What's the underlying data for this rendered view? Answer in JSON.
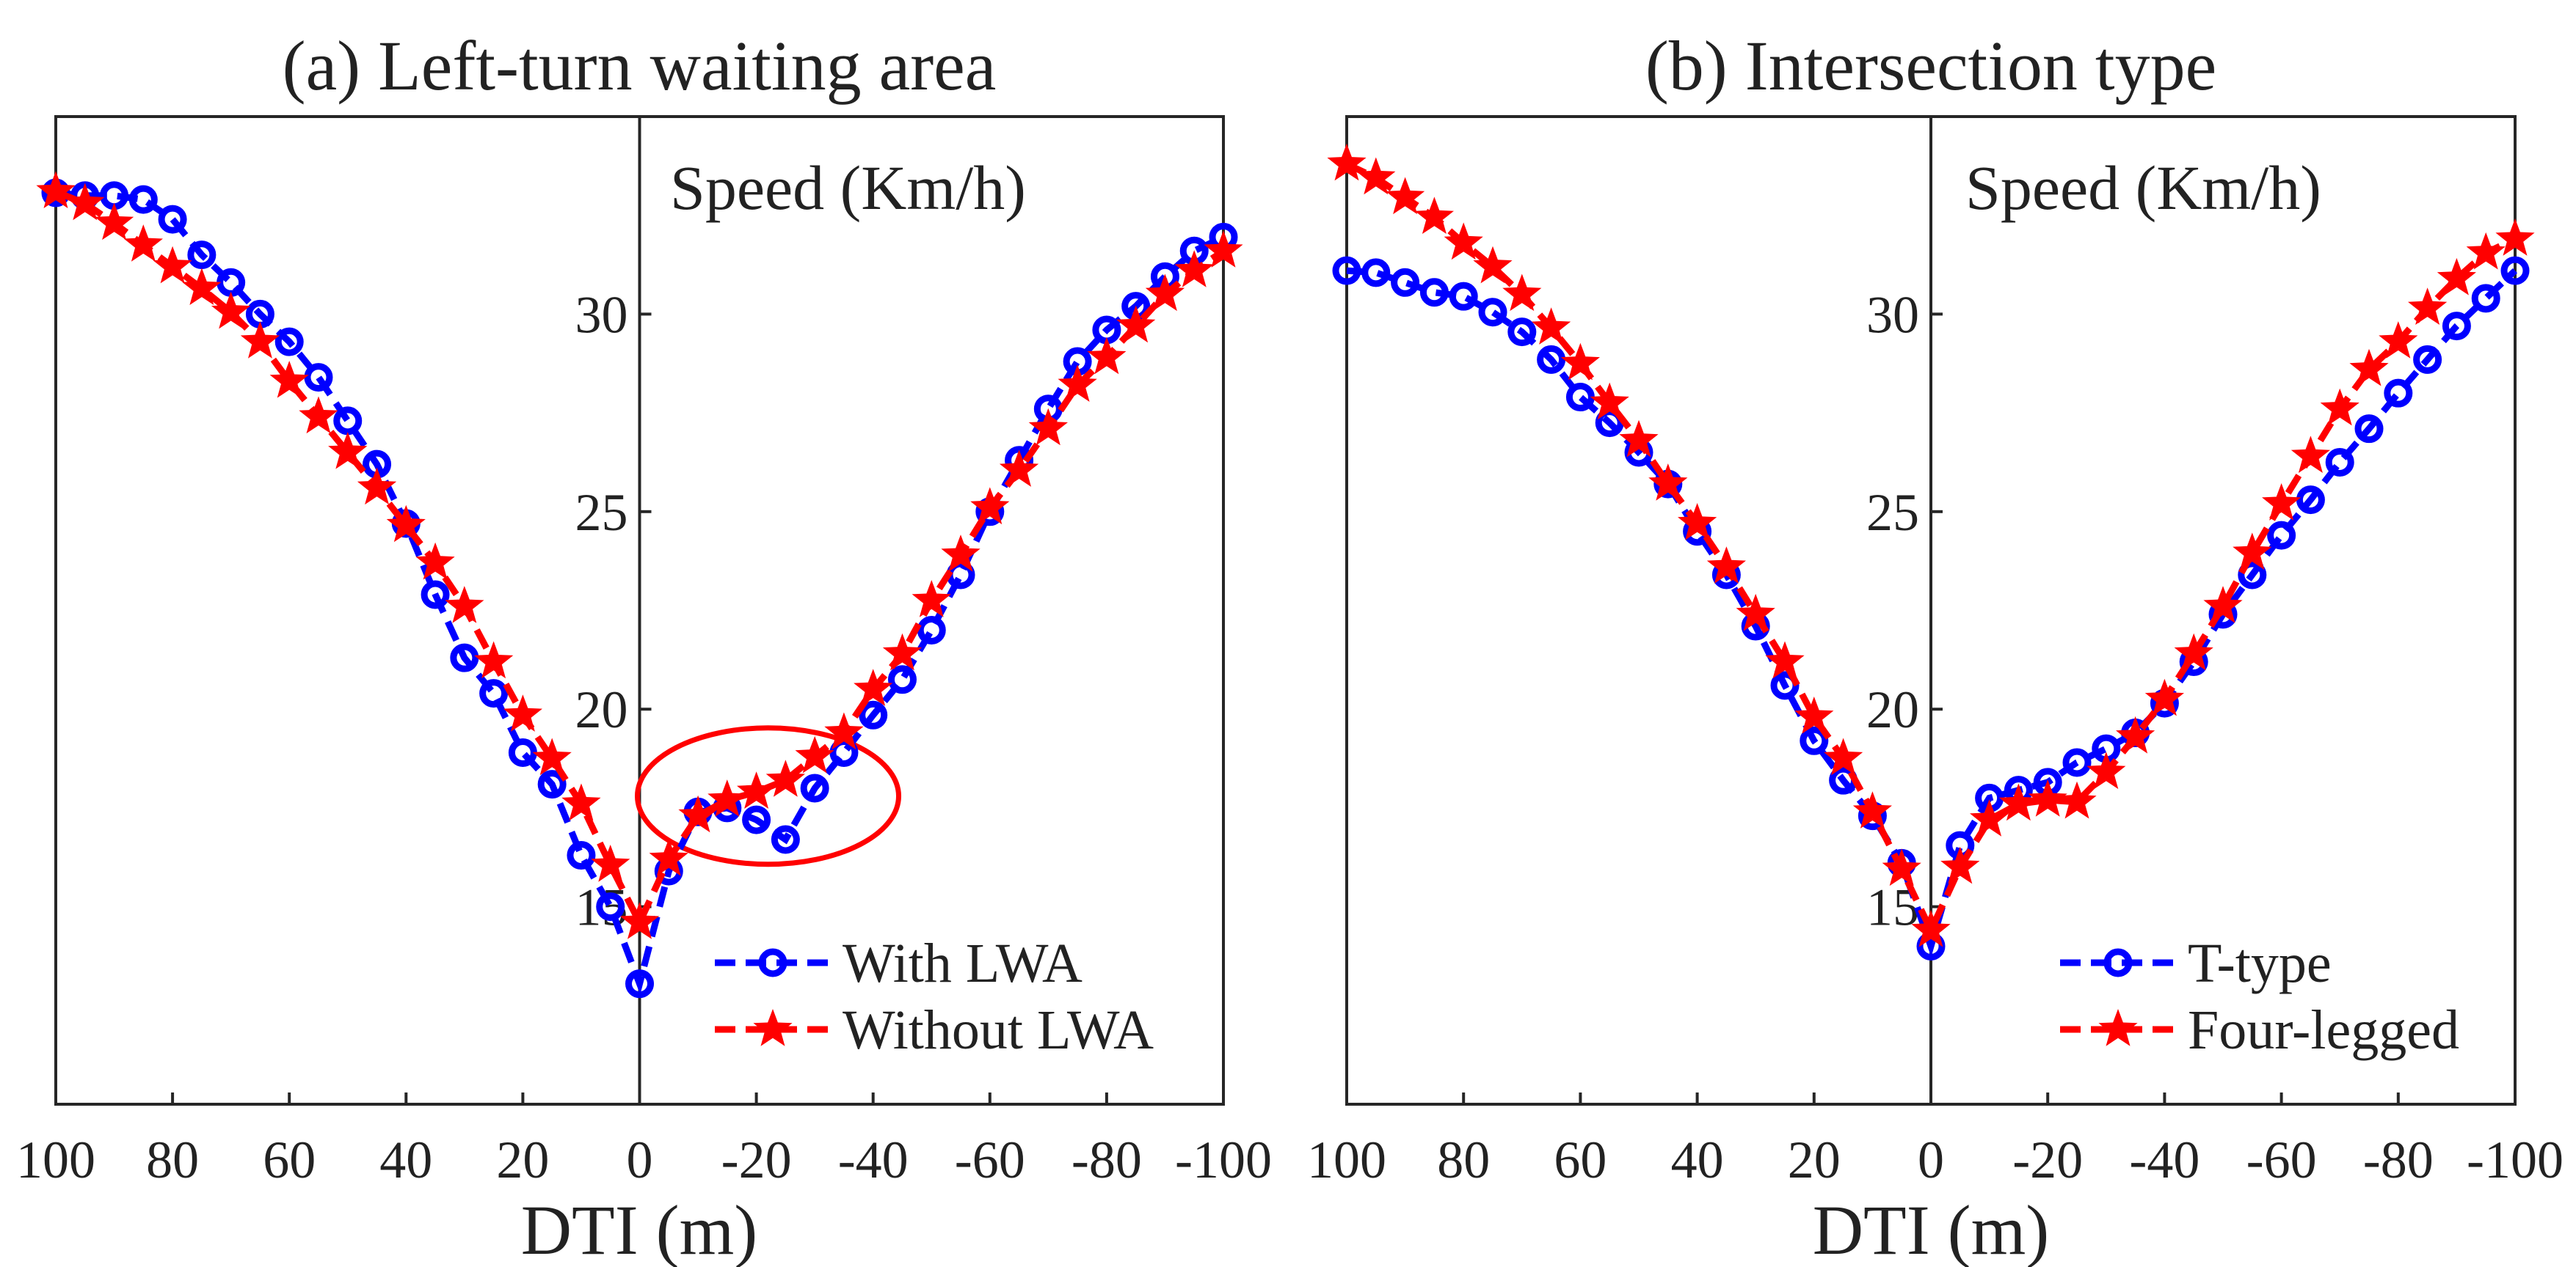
{
  "chart_data": [
    {
      "type": "line",
      "title": "(a) Left-turn waiting area",
      "xlabel": "DTI (m)",
      "ylabel": "Speed (Km/h)",
      "xlim": [
        100,
        -100
      ],
      "ylim": [
        10,
        35
      ],
      "xticks": [
        100,
        80,
        60,
        40,
        20,
        0,
        -20,
        -40,
        -60,
        -80,
        -100
      ],
      "xtick_labels": [
        "100",
        "80",
        "60",
        "40",
        "20",
        "0",
        "-20",
        "-40",
        "-60",
        "-80",
        "-100"
      ],
      "yticks": [
        15,
        20,
        25,
        30
      ],
      "ytick_labels": [
        "15",
        "20",
        "25",
        "30"
      ],
      "legend_position": "bottom-right",
      "annotation": "red ellipse highlighting DTI 0 to -40",
      "x": [
        100,
        95,
        90,
        85,
        80,
        75,
        70,
        65,
        60,
        55,
        50,
        45,
        40,
        35,
        30,
        25,
        20,
        15,
        10,
        5,
        0,
        -5,
        -10,
        -15,
        -20,
        -25,
        -30,
        -35,
        -40,
        -45,
        -50,
        -55,
        -60,
        -65,
        -70,
        -75,
        -80,
        -85,
        -90,
        -95,
        -100
      ],
      "series": [
        {
          "name": "With LWA",
          "color": "#0000ff",
          "marker": "circle",
          "values": [
            33.07,
            33.0,
            33.0,
            32.9,
            32.4,
            31.5,
            30.8,
            30.0,
            29.3,
            28.4,
            27.3,
            26.2,
            24.7,
            22.9,
            21.3,
            20.4,
            18.9,
            18.1,
            16.3,
            15.0,
            13.05,
            15.9,
            17.4,
            17.5,
            17.2,
            16.7,
            18.0,
            18.9,
            19.85,
            20.75,
            22.0,
            23.4,
            25.0,
            26.3,
            27.6,
            28.8,
            29.6,
            30.2,
            30.95,
            31.6,
            31.95
          ]
        },
        {
          "name": "Without LWA",
          "color": "#ff0000",
          "marker": "star",
          "values": [
            33.1,
            32.8,
            32.3,
            31.75,
            31.2,
            30.65,
            30.05,
            29.3,
            28.3,
            27.4,
            26.5,
            25.6,
            24.65,
            23.7,
            22.6,
            21.2,
            19.85,
            18.75,
            17.6,
            16.05,
            14.6,
            16.2,
            17.3,
            17.7,
            17.9,
            18.2,
            18.8,
            19.4,
            20.5,
            21.4,
            22.75,
            23.9,
            25.1,
            26.05,
            27.1,
            28.2,
            28.9,
            29.7,
            30.5,
            31.1,
            31.6
          ]
        }
      ]
    },
    {
      "type": "line",
      "title": "(b) Intersection type",
      "xlabel": "DTI (m)",
      "ylabel": "Speed (Km/h)",
      "xlim": [
        100,
        -100
      ],
      "ylim": [
        10,
        35
      ],
      "xticks": [
        100,
        80,
        60,
        40,
        20,
        0,
        -20,
        -40,
        -60,
        -80,
        -100
      ],
      "xtick_labels": [
        "100",
        "80",
        "60",
        "40",
        "20",
        "0",
        "-20",
        "-40",
        "-60",
        "-80",
        "-100"
      ],
      "yticks": [
        15,
        20,
        25,
        30
      ],
      "ytick_labels": [
        "15",
        "20",
        "25",
        "30"
      ],
      "legend_position": "bottom-right",
      "x": [
        100,
        95,
        90,
        85,
        80,
        75,
        70,
        65,
        60,
        55,
        50,
        45,
        40,
        35,
        30,
        25,
        20,
        15,
        10,
        5,
        0,
        -5,
        -10,
        -15,
        -20,
        -25,
        -30,
        -35,
        -40,
        -45,
        -50,
        -55,
        -60,
        -65,
        -70,
        -75,
        -80,
        -85,
        -90,
        -95,
        -100
      ],
      "series": [
        {
          "name": "T-type",
          "color": "#0000ff",
          "marker": "circle",
          "values": [
            31.1,
            31.05,
            30.8,
            30.55,
            30.45,
            30.05,
            29.55,
            28.85,
            27.9,
            27.25,
            26.5,
            25.7,
            24.5,
            23.4,
            22.1,
            20.6,
            19.2,
            18.2,
            17.3,
            16.1,
            14.0,
            16.55,
            17.75,
            17.95,
            18.15,
            18.65,
            19.0,
            19.4,
            20.15,
            21.2,
            22.4,
            23.4,
            24.4,
            25.3,
            26.25,
            27.1,
            28.0,
            28.85,
            29.7,
            30.4,
            31.1
          ]
        },
        {
          "name": "Four-legged",
          "color": "#ff0000",
          "marker": "star",
          "values": [
            33.8,
            33.45,
            32.95,
            32.45,
            31.8,
            31.2,
            30.5,
            29.65,
            28.75,
            27.75,
            26.8,
            25.7,
            24.7,
            23.6,
            22.4,
            21.2,
            19.8,
            18.75,
            17.4,
            15.95,
            14.4,
            16.0,
            17.2,
            17.6,
            17.7,
            17.65,
            18.4,
            19.3,
            20.25,
            21.4,
            22.6,
            23.95,
            25.2,
            26.4,
            27.6,
            28.6,
            29.3,
            30.15,
            30.9,
            31.55,
            31.9
          ]
        }
      ]
    }
  ]
}
